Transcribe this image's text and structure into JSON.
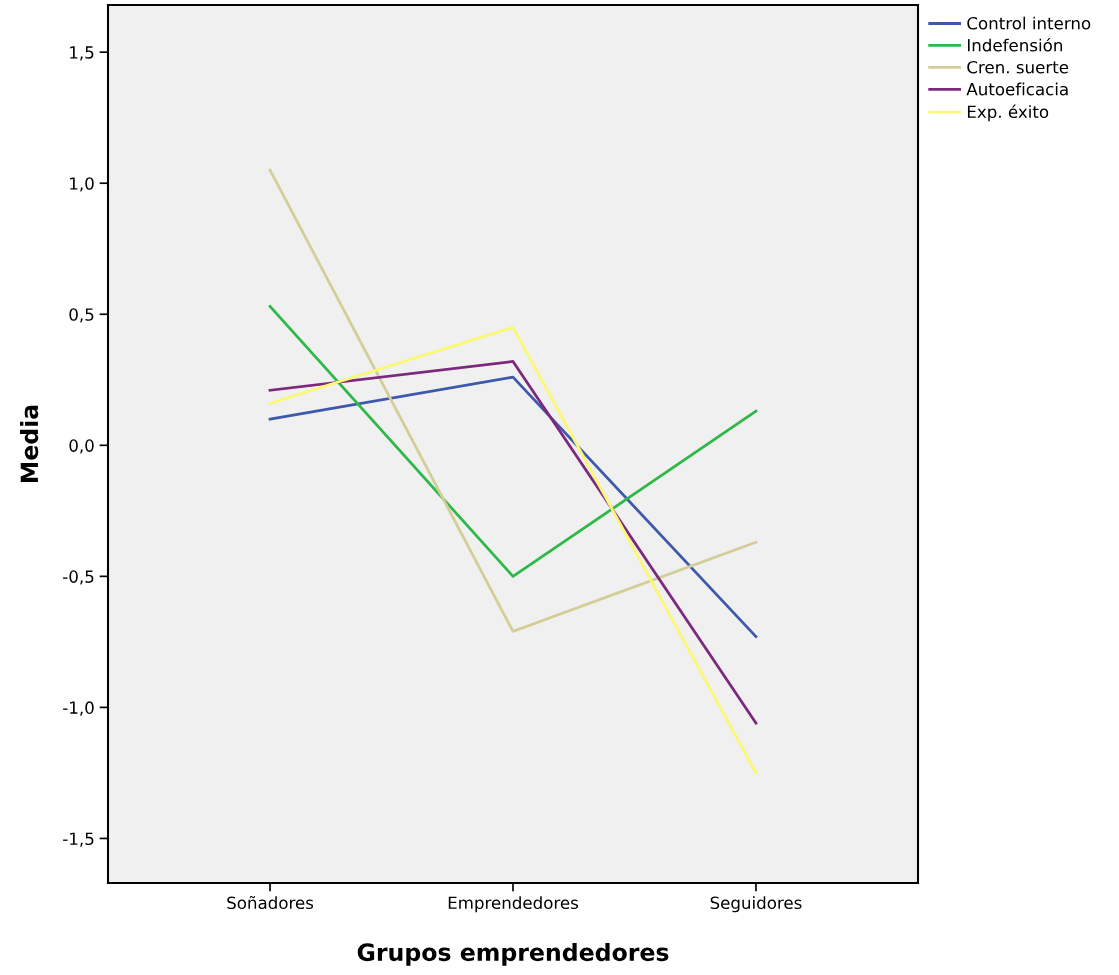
{
  "chart_data": {
    "type": "line",
    "xlabel": "Grupos emprendedores",
    "ylabel": "Media",
    "categories": [
      "Soñadores",
      "Emprendedores",
      "Seguidores"
    ],
    "series": [
      {
        "name": "Control interno",
        "color": "#3e58ac",
        "values": [
          0.1,
          0.26,
          -0.73
        ]
      },
      {
        "name": "Indefensión",
        "color": "#2eb848",
        "values": [
          0.53,
          -0.5,
          0.13
        ]
      },
      {
        "name": "Cren. suerte",
        "color": "#d3ce97",
        "values": [
          1.05,
          -0.71,
          -0.37
        ]
      },
      {
        "name": "Autoeficacia",
        "color": "#7c287d",
        "values": [
          0.21,
          0.32,
          -1.06
        ]
      },
      {
        "name": "Exp. éxito",
        "color": "#fbf873",
        "values": [
          0.16,
          0.45,
          -1.25
        ]
      }
    ],
    "ylim": [
      -1.67,
      1.68
    ],
    "yticks": [
      {
        "value": -1.5,
        "label": "-1,5"
      },
      {
        "value": -1.0,
        "label": "-1,0"
      },
      {
        "value": -0.5,
        "label": "-0,5"
      },
      {
        "value": 0.0,
        "label": "0,0"
      },
      {
        "value": 0.5,
        "label": "0,5"
      },
      {
        "value": 1.0,
        "label": "1,0"
      },
      {
        "value": 1.5,
        "label": "1,5"
      }
    ],
    "grid": false,
    "legend": "top right",
    "marker": "none",
    "line_style": "solid"
  }
}
